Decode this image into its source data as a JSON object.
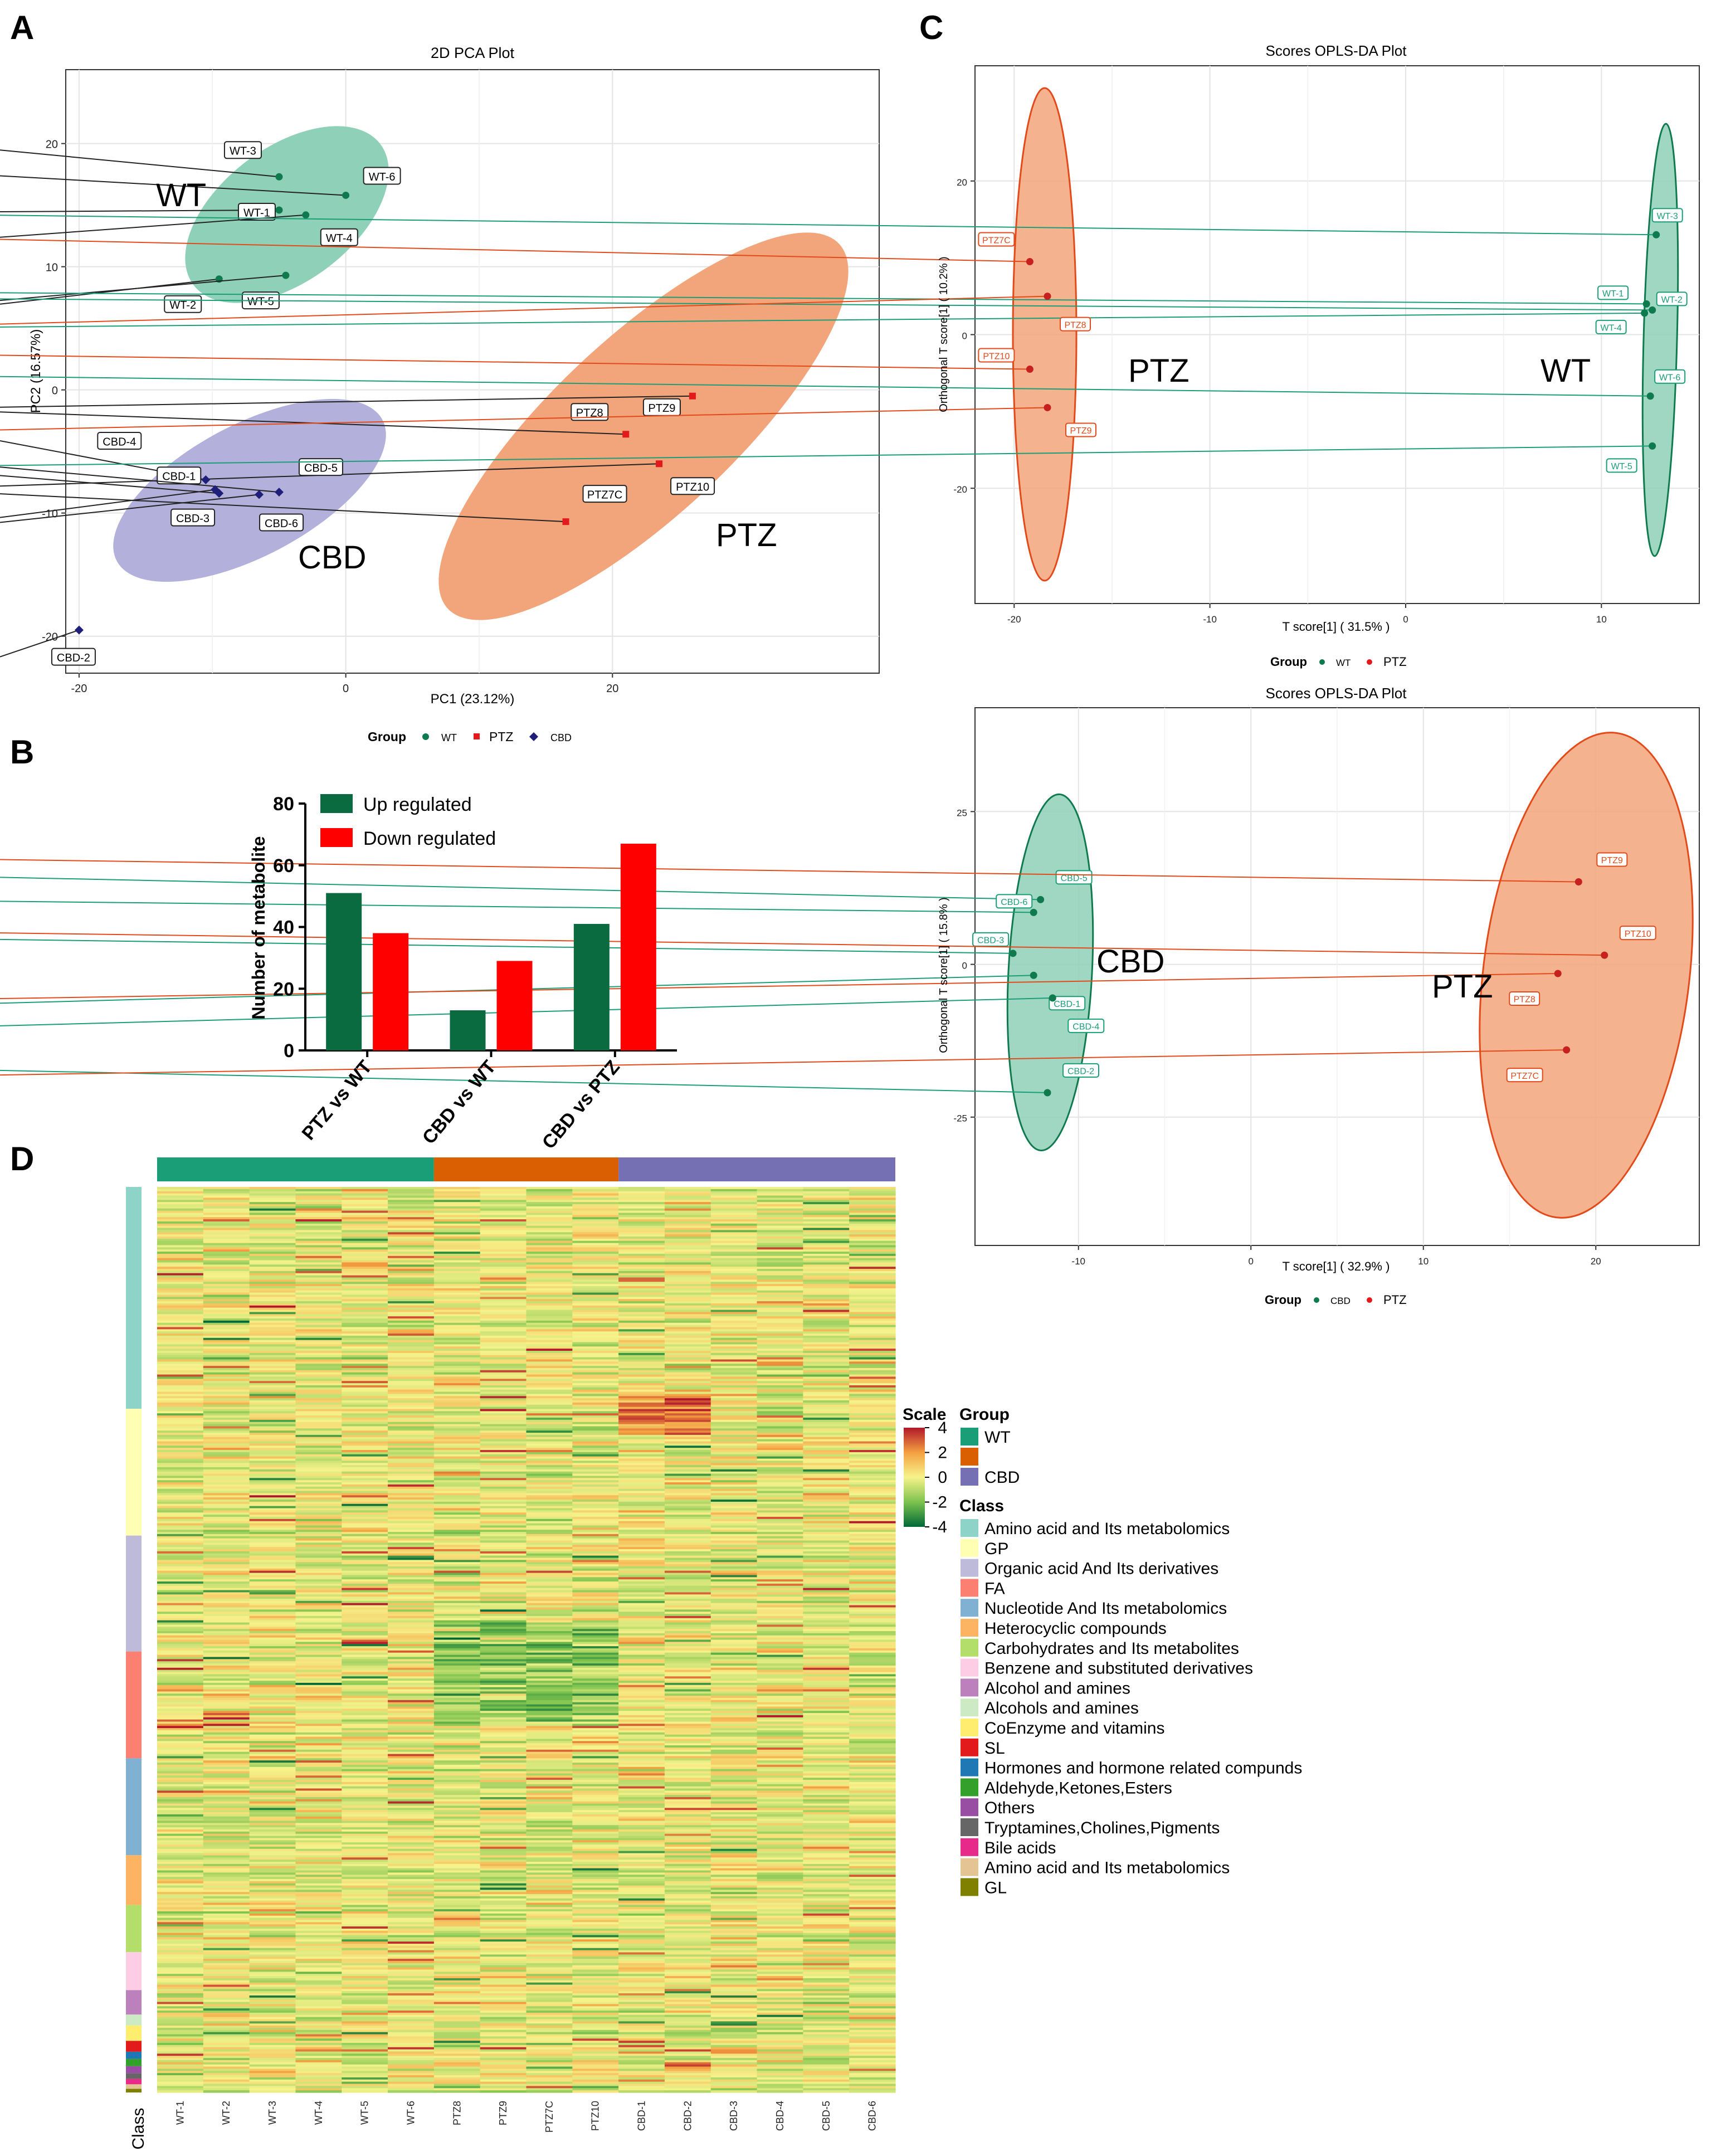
{
  "panels": {
    "a": "A",
    "b": "B",
    "c": "C",
    "d": "D"
  },
  "colors": {
    "wt": "#1a9e77",
    "ptz": "#e34a1a",
    "cbd": "#6c6cc0",
    "wt_dark": "#0e7a4e",
    "cbd_dark": "#1f1f7a",
    "bar_up": "#0a6b40",
    "bar_down": "#ff0000",
    "wt_ellipse": "#8fd0b8",
    "ptz_ellipse": "#f2a47a",
    "cbd_ellipse": "#b3b0dc"
  },
  "chart_data": [
    {
      "id": "pca",
      "type": "scatter",
      "title": "2D PCA Plot",
      "xlabel": "PC1 (23.12%)",
      "ylabel": "PC2 (16.57%)",
      "xlim": [
        -21,
        40
      ],
      "ylim": [
        -23,
        26
      ],
      "xticks": [
        -20,
        0,
        20
      ],
      "yticks": [
        -20,
        -10,
        0,
        10,
        20
      ],
      "legend": {
        "title": "Group",
        "items": [
          "WT",
          "PTZ",
          "CBD"
        ],
        "position": "bottom"
      },
      "group_labels": [
        "WT",
        "PTZ",
        "CBD"
      ],
      "series": [
        {
          "name": "WT",
          "points": [
            {
              "label": "WT-1",
              "x": -5,
              "y": 14.6
            },
            {
              "label": "WT-2",
              "x": -9.5,
              "y": 9
            },
            {
              "label": "WT-3",
              "x": -5,
              "y": 17.3
            },
            {
              "label": "WT-4",
              "x": -3,
              "y": 14.2
            },
            {
              "label": "WT-5",
              "x": -4.5,
              "y": 9.3
            },
            {
              "label": "WT-6",
              "x": 0,
              "y": 15.8
            }
          ]
        },
        {
          "name": "PTZ",
          "points": [
            {
              "label": "PTZ8",
              "x": 21,
              "y": -3.6
            },
            {
              "label": "PTZ9",
              "x": 26,
              "y": -0.5
            },
            {
              "label": "PTZ7C",
              "x": 16.5,
              "y": -10.7
            },
            {
              "label": "PTZ10",
              "x": 23.5,
              "y": -6
            }
          ]
        },
        {
          "name": "CBD",
          "points": [
            {
              "label": "CBD-4",
              "x": -10.5,
              "y": -7.3
            },
            {
              "label": "CBD-1",
              "x": -9.5,
              "y": -8.4
            },
            {
              "label": "CBD-5",
              "x": -5,
              "y": -8.3
            },
            {
              "label": "CBD-3",
              "x": -9.8,
              "y": -8.1
            },
            {
              "label": "CBD-6",
              "x": -6.5,
              "y": -8.5
            },
            {
              "label": "CBD-2",
              "x": -20,
              "y": -19.5
            }
          ]
        }
      ]
    },
    {
      "id": "opls_wt_ptz",
      "type": "scatter",
      "title": "Scores OPLS-DA Plot",
      "xlabel": "T score[1] ( 31.5% )",
      "ylabel": "Orthogonal T score[1] ( 10.2% )",
      "xlim": [
        -22,
        15
      ],
      "ylim": [
        -35,
        35
      ],
      "xticks": [
        -20,
        -10,
        0,
        10
      ],
      "yticks": [
        -20,
        0,
        20
      ],
      "legend": {
        "title": "Group",
        "items": [
          "WT",
          "PTZ"
        ],
        "position": "bottom"
      },
      "group_labels": [
        "PTZ",
        "WT"
      ],
      "series": [
        {
          "name": "WT",
          "points": [
            {
              "label": "WT-3",
              "x": 12.8,
              "y": 13
            },
            {
              "label": "WT-1",
              "x": 12.3,
              "y": 4
            },
            {
              "label": "WT-2",
              "x": 12.6,
              "y": 3.2
            },
            {
              "label": "WT-4",
              "x": 12.2,
              "y": 2.8
            },
            {
              "label": "WT-6",
              "x": 12.5,
              "y": -8
            },
            {
              "label": "WT-5",
              "x": 12.6,
              "y": -14.5
            }
          ]
        },
        {
          "name": "PTZ",
          "points": [
            {
              "label": "PTZ7C",
              "x": -19.2,
              "y": 9.5
            },
            {
              "label": "PTZ8",
              "x": -18.3,
              "y": 5
            },
            {
              "label": "PTZ10",
              "x": -19.2,
              "y": -4.5
            },
            {
              "label": "PTZ9",
              "x": -18.3,
              "y": -9.5
            }
          ]
        }
      ]
    },
    {
      "id": "opls_cbd_ptz",
      "type": "scatter",
      "title": "Scores OPLS-DA Plot",
      "xlabel": "T score[1] ( 32.9% )",
      "ylabel": "Orthogonal T score[1] ( 15.8% )",
      "xlim": [
        -16,
        26
      ],
      "ylim": [
        -46,
        42
      ],
      "xticks": [
        -10,
        0,
        10,
        20
      ],
      "yticks": [
        -25,
        0,
        25
      ],
      "legend": {
        "title": "Group",
        "items": [
          "CBD",
          "PTZ"
        ],
        "position": "bottom"
      },
      "group_labels": [
        "CBD",
        "PTZ"
      ],
      "series": [
        {
          "name": "CBD",
          "points": [
            {
              "label": "CBD-5",
              "x": -12.2,
              "y": 10.6
            },
            {
              "label": "CBD-6",
              "x": -12.6,
              "y": 8.5
            },
            {
              "label": "CBD-3",
              "x": -13.8,
              "y": 1.8
            },
            {
              "label": "CBD-1",
              "x": -12.6,
              "y": -1.8
            },
            {
              "label": "CBD-4",
              "x": -11.5,
              "y": -5.5
            },
            {
              "label": "CBD-2",
              "x": -11.8,
              "y": -21
            }
          ]
        },
        {
          "name": "PTZ",
          "points": [
            {
              "label": "PTZ9",
              "x": 19,
              "y": 13.5
            },
            {
              "label": "PTZ10",
              "x": 20.5,
              "y": 1.5
            },
            {
              "label": "PTZ8",
              "x": 17.8,
              "y": -1.5
            },
            {
              "label": "PTZ7C",
              "x": 18.3,
              "y": -14
            }
          ]
        }
      ]
    },
    {
      "id": "diff_bar",
      "type": "bar",
      "ylabel": "Number of metabolite",
      "ylim": [
        0,
        80
      ],
      "yticks": [
        0,
        20,
        40,
        60,
        80
      ],
      "categories": [
        "PTZ vs WT",
        "CBD vs WT",
        "CBD vs PTZ"
      ],
      "series": [
        {
          "name": "Up regulated",
          "values": [
            51,
            13,
            41
          ]
        },
        {
          "name": "Down  regulated",
          "values": [
            38,
            29,
            67
          ]
        }
      ],
      "legend": {
        "position": "top-left"
      }
    },
    {
      "id": "heatmap",
      "type": "heatmap",
      "columns": [
        "WT-1",
        "WT-2",
        "WT-3",
        "WT-4",
        "WT-5",
        "WT-6",
        "PTZ8",
        "PTZ9",
        "PTZ7C",
        "PTZ10",
        "CBD-1",
        "CBD-2",
        "CBD-3",
        "CBD-4",
        "CBD-5",
        "CBD-6"
      ],
      "column_groups": [
        {
          "name": "WT",
          "count": 6,
          "color": "#1a9e77"
        },
        {
          "name": "",
          "count": 4,
          "color": "#d95f02"
        },
        {
          "name": "CBD",
          "count": 6,
          "color": "#7570b3"
        }
      ],
      "class_axis_label": "Class",
      "scale": {
        "title": "Scale",
        "ticks": [
          "4",
          "2",
          "0",
          "-2",
          "-4"
        ],
        "min": -4,
        "max": 4
      },
      "group_legend": {
        "title": "Group",
        "items": [
          {
            "name": "WT",
            "color": "#1a9e77"
          },
          {
            "name": "",
            "color": "#d95f02"
          },
          {
            "name": "CBD",
            "color": "#7570b3"
          }
        ]
      },
      "class_legend": {
        "title": "Class",
        "items": [
          {
            "name": "Amino acid and Its metabolomics",
            "color": "#8dd3c7",
            "weight": 0.245
          },
          {
            "name": "GP",
            "color": "#ffffb3",
            "weight": 0.14
          },
          {
            "name": "Organic acid And Its derivatives",
            "color": "#bebada",
            "weight": 0.128
          },
          {
            "name": "FA",
            "color": "#fb8072",
            "weight": 0.118
          },
          {
            "name": "Nucleotide And Its metabolomics",
            "color": "#80b1d3",
            "weight": 0.107
          },
          {
            "name": "Heterocyclic compounds",
            "color": "#fdb462",
            "weight": 0.055
          },
          {
            "name": "Carbohydrates and Its metabolites",
            "color": "#b3de69",
            "weight": 0.052
          },
          {
            "name": "Benzene and substituted derivatives",
            "color": "#fccde5",
            "weight": 0.042
          },
          {
            "name": "Alcohol and amines",
            "color": "#bc80bd",
            "weight": 0.027
          },
          {
            "name": "Alcohols and amines",
            "color": "#ccebc5",
            "weight": 0.012
          },
          {
            "name": "CoEnzyme and vitamins",
            "color": "#ffed6f",
            "weight": 0.017
          },
          {
            "name": "SL",
            "color": "#e31a1c",
            "weight": 0.012
          },
          {
            "name": "Hormones and hormone related compunds",
            "color": "#1f78b4",
            "weight": 0.008
          },
          {
            "name": "Aldehyde,Ketones,Esters",
            "color": "#33a02c",
            "weight": 0.008
          },
          {
            "name": "Others",
            "color": "#984ea3",
            "weight": 0.008
          },
          {
            "name": "Tryptamines,Cholines,Pigments",
            "color": "#666666",
            "weight": 0.006
          },
          {
            "name": "Bile acids",
            "color": "#e7298a",
            "weight": 0.006
          },
          {
            "name": "Amino acid  and Its metabolomics",
            "color": "#e5c494",
            "weight": 0.005
          },
          {
            "name": "GL",
            "color": "#808000",
            "weight": 0.004
          }
        ]
      }
    }
  ]
}
